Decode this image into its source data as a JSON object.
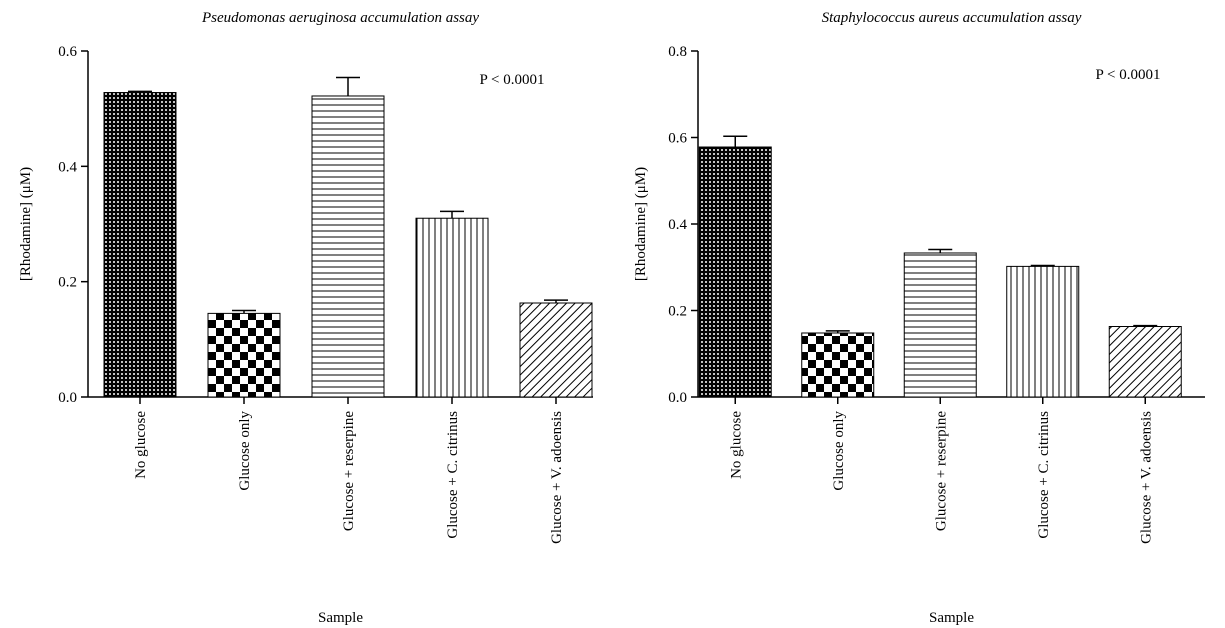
{
  "chart_data": [
    {
      "type": "bar",
      "title": "Pseudomonas aeruginosa accumulation assay",
      "x_label": "Sample",
      "y_label": "[Rhodamine] (μM)",
      "annotation": "P < 0.0001",
      "categories": [
        "No glucose",
        "Glucose only",
        "Glucose + reserpine",
        "Glucose + C. citrinus",
        "Glucose + V. adoensis"
      ],
      "values": [
        0.528,
        0.145,
        0.522,
        0.31,
        0.163
      ],
      "errors": [
        0.002,
        0.005,
        0.032,
        0.012,
        0.005
      ],
      "patterns": [
        "dots",
        "checker",
        "hlines",
        "vlines",
        "diag"
      ],
      "ylim": [
        0,
        0.6
      ],
      "yticks": [
        {
          "value": 0,
          "label": "0.0"
        },
        0.2,
        0.4,
        0.6
      ]
    },
    {
      "type": "bar",
      "title": "Staphylococcus aureus accumulation assay",
      "x_label": "Sample",
      "y_label": "[Rhodamine] (μM)",
      "annotation": "P < 0.0001",
      "categories": [
        "No glucose",
        "Glucose only",
        "Glucose + reserpine",
        "Glucose + C. citrinus",
        "Glucose + V. adoensis"
      ],
      "values": [
        0.578,
        0.148,
        0.333,
        0.302,
        0.163
      ],
      "errors": [
        0.025,
        0.005,
        0.008,
        0.002,
        0.002
      ],
      "patterns": [
        "dots",
        "checker",
        "hlines",
        "vlines",
        "diag"
      ],
      "ylim": [
        0,
        0.8
      ],
      "yticks": [
        {
          "value": 0,
          "label": "0.0"
        },
        0.2,
        0.4,
        0.6,
        0.8
      ]
    }
  ]
}
